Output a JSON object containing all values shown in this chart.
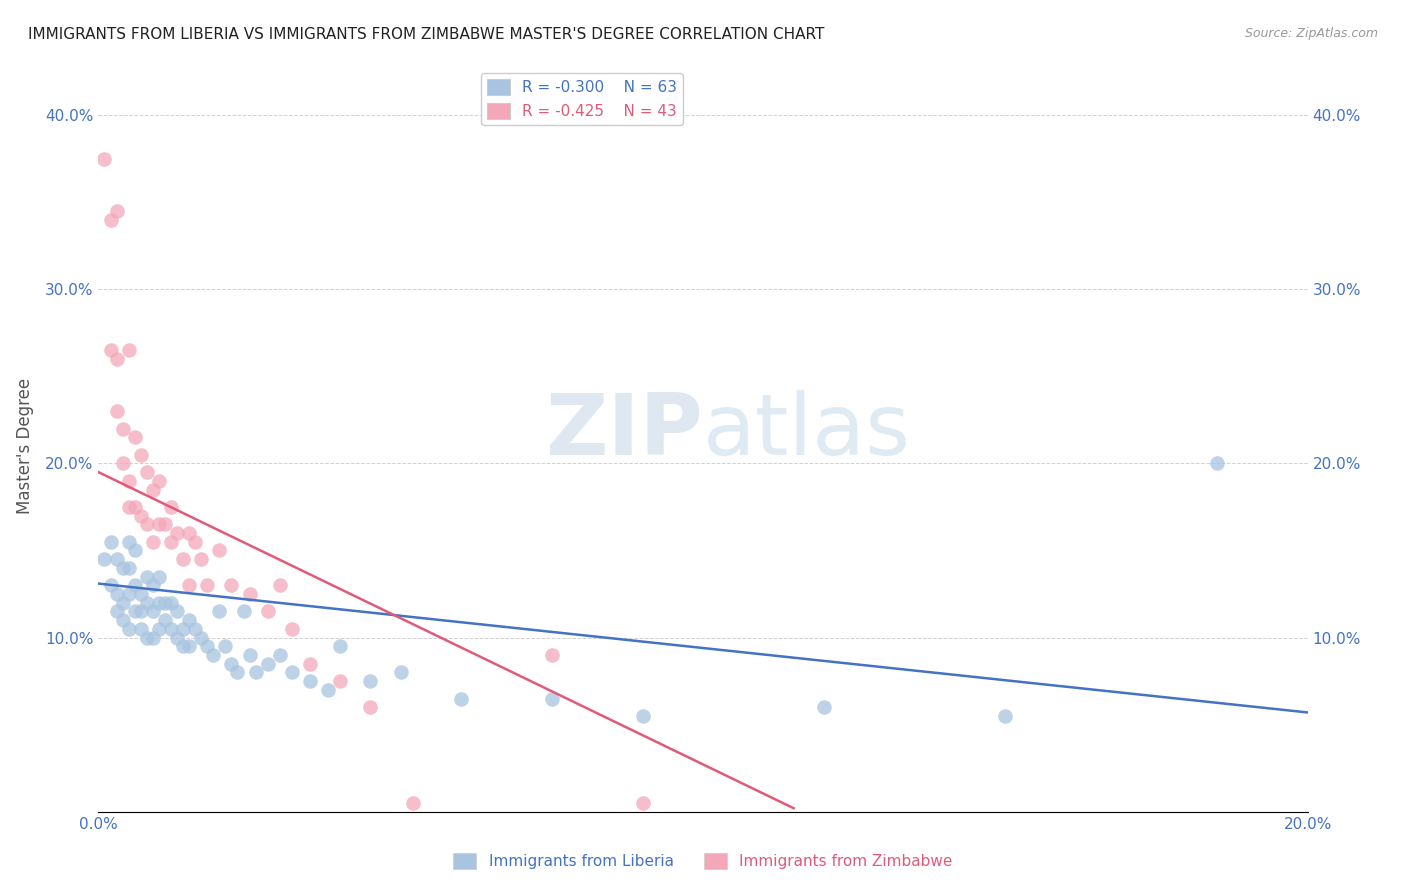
{
  "title": "IMMIGRANTS FROM LIBERIA VS IMMIGRANTS FROM ZIMBABWE MASTER'S DEGREE CORRELATION CHART",
  "source": "Source: ZipAtlas.com",
  "ylabel": "Master's Degree",
  "xlim": [
    0.0,
    0.2
  ],
  "ylim": [
    0.0,
    0.42
  ],
  "xticks": [
    0.0,
    0.05,
    0.1,
    0.15,
    0.2
  ],
  "yticks": [
    0.0,
    0.1,
    0.2,
    0.3,
    0.4
  ],
  "xtick_labels": [
    "0.0%",
    "",
    "",
    "",
    "20.0%"
  ],
  "ytick_labels": [
    "",
    "10.0%",
    "20.0%",
    "30.0%",
    "40.0%"
  ],
  "legend_labels": [
    "Immigrants from Liberia",
    "Immigrants from Zimbabwe"
  ],
  "blue_R": -0.3,
  "blue_N": 63,
  "pink_R": -0.425,
  "pink_N": 43,
  "blue_color": "#a8c4e0",
  "pink_color": "#f4a7b9",
  "blue_line_color": "#4472c4",
  "pink_line_color": "#e05a7a",
  "background_color": "#ffffff",
  "blue_line_x0": 0.0,
  "blue_line_y0": 0.131,
  "blue_line_x1": 0.2,
  "blue_line_y1": 0.057,
  "pink_line_x0": 0.0,
  "pink_line_y0": 0.195,
  "pink_line_x1": 0.115,
  "pink_line_y1": 0.002,
  "blue_scatter_x": [
    0.001,
    0.002,
    0.002,
    0.003,
    0.003,
    0.003,
    0.004,
    0.004,
    0.004,
    0.005,
    0.005,
    0.005,
    0.005,
    0.006,
    0.006,
    0.006,
    0.007,
    0.007,
    0.007,
    0.008,
    0.008,
    0.008,
    0.009,
    0.009,
    0.009,
    0.01,
    0.01,
    0.01,
    0.011,
    0.011,
    0.012,
    0.012,
    0.013,
    0.013,
    0.014,
    0.014,
    0.015,
    0.015,
    0.016,
    0.017,
    0.018,
    0.019,
    0.02,
    0.021,
    0.022,
    0.023,
    0.024,
    0.025,
    0.026,
    0.028,
    0.03,
    0.032,
    0.035,
    0.038,
    0.04,
    0.045,
    0.05,
    0.06,
    0.075,
    0.09,
    0.12,
    0.15,
    0.185
  ],
  "blue_scatter_y": [
    0.145,
    0.155,
    0.13,
    0.145,
    0.125,
    0.115,
    0.14,
    0.12,
    0.11,
    0.155,
    0.14,
    0.125,
    0.105,
    0.15,
    0.13,
    0.115,
    0.125,
    0.115,
    0.105,
    0.135,
    0.12,
    0.1,
    0.13,
    0.115,
    0.1,
    0.135,
    0.12,
    0.105,
    0.12,
    0.11,
    0.12,
    0.105,
    0.115,
    0.1,
    0.105,
    0.095,
    0.11,
    0.095,
    0.105,
    0.1,
    0.095,
    0.09,
    0.115,
    0.095,
    0.085,
    0.08,
    0.115,
    0.09,
    0.08,
    0.085,
    0.09,
    0.08,
    0.075,
    0.07,
    0.095,
    0.075,
    0.08,
    0.065,
    0.065,
    0.055,
    0.06,
    0.055,
    0.2
  ],
  "pink_scatter_x": [
    0.001,
    0.002,
    0.002,
    0.003,
    0.003,
    0.003,
    0.004,
    0.004,
    0.005,
    0.005,
    0.005,
    0.006,
    0.006,
    0.007,
    0.007,
    0.008,
    0.008,
    0.009,
    0.009,
    0.01,
    0.01,
    0.011,
    0.012,
    0.012,
    0.013,
    0.014,
    0.015,
    0.015,
    0.016,
    0.017,
    0.018,
    0.02,
    0.022,
    0.025,
    0.028,
    0.03,
    0.032,
    0.035,
    0.04,
    0.045,
    0.052,
    0.075,
    0.09
  ],
  "pink_scatter_y": [
    0.375,
    0.34,
    0.265,
    0.345,
    0.26,
    0.23,
    0.22,
    0.2,
    0.265,
    0.19,
    0.175,
    0.215,
    0.175,
    0.205,
    0.17,
    0.195,
    0.165,
    0.185,
    0.155,
    0.19,
    0.165,
    0.165,
    0.175,
    0.155,
    0.16,
    0.145,
    0.16,
    0.13,
    0.155,
    0.145,
    0.13,
    0.15,
    0.13,
    0.125,
    0.115,
    0.13,
    0.105,
    0.085,
    0.075,
    0.06,
    0.005,
    0.09,
    0.005
  ]
}
